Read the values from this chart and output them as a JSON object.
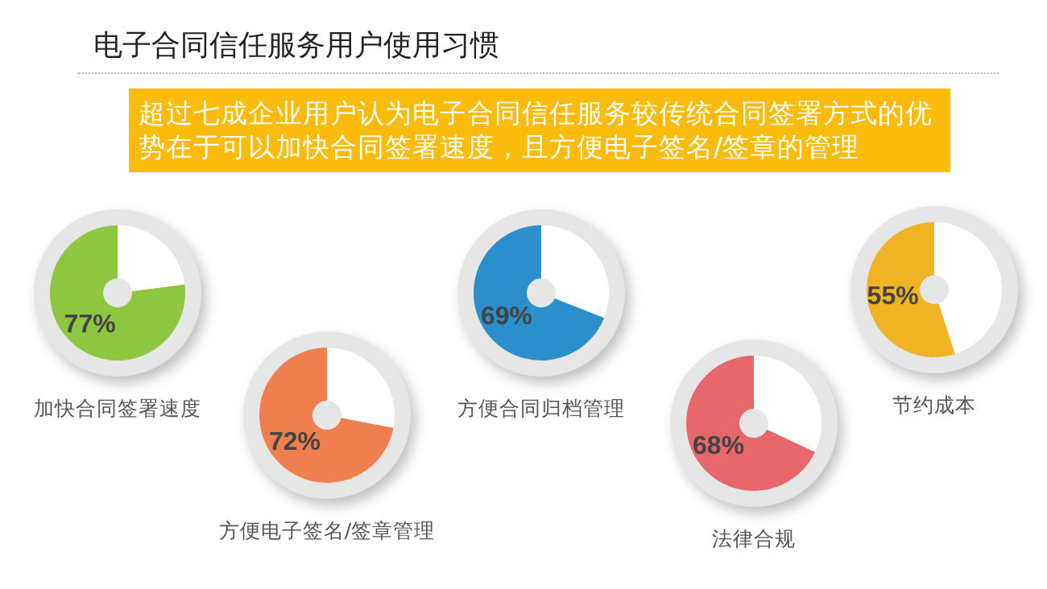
{
  "chart_data": [
    {
      "type": "other",
      "title": "电子合同信任服务用户使用习惯",
      "subtitle": "超过七成企业用户认为电子合同信任服务较传统合同签署方式的优势在于可以加快合同签署速度，且方便电子签名/签章的管理"
    },
    {
      "type": "donut",
      "title": "加快合同签署速度",
      "categories": [
        null,
        null
      ],
      "values": [
        77,
        23
      ],
      "colors": [
        "#8dc63f",
        "#ffffff"
      ],
      "value_labels": [
        "77%",
        null
      ]
    },
    {
      "type": "donut",
      "title": "方便电子签名/签章管理",
      "categories": [
        null,
        null
      ],
      "values": [
        72,
        28
      ],
      "colors": [
        "#f07f4f",
        "#ffffff"
      ],
      "value_labels": [
        "72%",
        null
      ]
    },
    {
      "type": "donut",
      "title": "方便合同归档管理",
      "categories": [
        null,
        null
      ],
      "values": [
        69,
        31
      ],
      "colors": [
        "#2a8fca",
        "#ffffff"
      ],
      "value_labels": [
        "69%",
        null
      ]
    },
    {
      "type": "donut",
      "title": "法律合规",
      "categories": [
        null,
        null
      ],
      "values": [
        68,
        32
      ],
      "colors": [
        "#e8676b",
        "#ffffff"
      ],
      "value_labels": [
        "68%",
        null
      ]
    },
    {
      "type": "donut",
      "title": "节约成本",
      "categories": [
        null,
        null
      ],
      "values": [
        55,
        45
      ],
      "colors": [
        "#f0b323",
        "#ffffff"
      ],
      "value_labels": [
        "55%",
        null
      ]
    }
  ]
}
